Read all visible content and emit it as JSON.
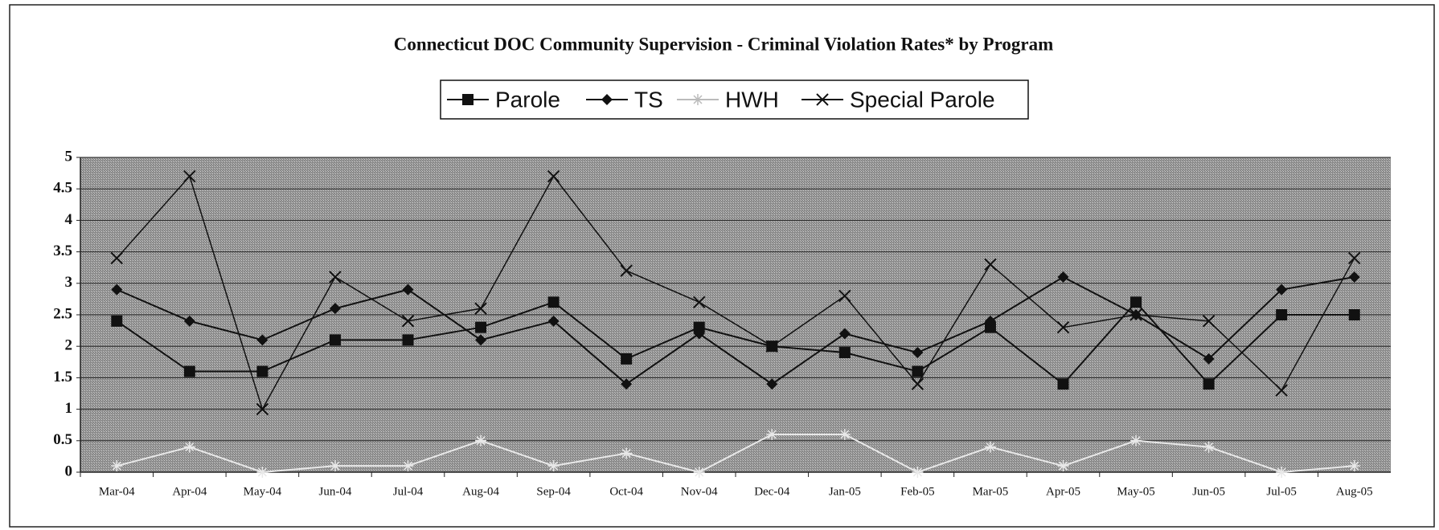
{
  "chart_data": {
    "type": "line",
    "title": "Connecticut DOC Community Supervision - Criminal Violation Rates* by Program",
    "categories": [
      "Mar-04",
      "Apr-04",
      "May-04",
      "Jun-04",
      "Jul-04",
      "Aug-04",
      "Sep-04",
      "Oct-04",
      "Nov-04",
      "Dec-04",
      "Jan-05",
      "Feb-05",
      "Mar-05",
      "Apr-05",
      "May-05",
      "Jun-05",
      "Jul-05",
      "Aug-05"
    ],
    "series": [
      {
        "name": "Parole",
        "color": "#111111",
        "marker": "square",
        "values": [
          2.4,
          1.6,
          1.6,
          2.1,
          2.1,
          2.3,
          2.7,
          1.8,
          2.3,
          2.0,
          1.9,
          1.6,
          2.3,
          1.4,
          2.7,
          1.4,
          2.5,
          2.5
        ]
      },
      {
        "name": "TS",
        "color": "#111111",
        "marker": "diamond",
        "values": [
          2.9,
          2.4,
          2.1,
          2.6,
          2.9,
          2.1,
          2.4,
          1.4,
          2.2,
          1.4,
          2.2,
          1.9,
          2.4,
          3.1,
          2.5,
          1.8,
          2.9,
          3.1
        ]
      },
      {
        "name": "HWH",
        "color": "#e8e8e8",
        "marker": "star",
        "values": [
          0.1,
          0.4,
          0,
          0.1,
          0.1,
          0.5,
          0.1,
          0.3,
          0,
          0.6,
          0.6,
          0,
          0.4,
          0.1,
          0.5,
          0.4,
          0,
          0.1
        ]
      },
      {
        "name": "Special Parole",
        "color": "#111111",
        "marker": "x",
        "values": [
          3.4,
          4.7,
          1.0,
          3.1,
          2.4,
          2.6,
          4.7,
          3.2,
          2.7,
          2.0,
          2.8,
          1.4,
          3.3,
          2.3,
          2.5,
          2.4,
          1.3,
          3.4
        ]
      }
    ],
    "ylim": [
      0,
      5
    ],
    "yticks": [
      0,
      0.5,
      1,
      1.5,
      2,
      2.5,
      3,
      3.5,
      4,
      4.5,
      5
    ],
    "grid": true
  }
}
